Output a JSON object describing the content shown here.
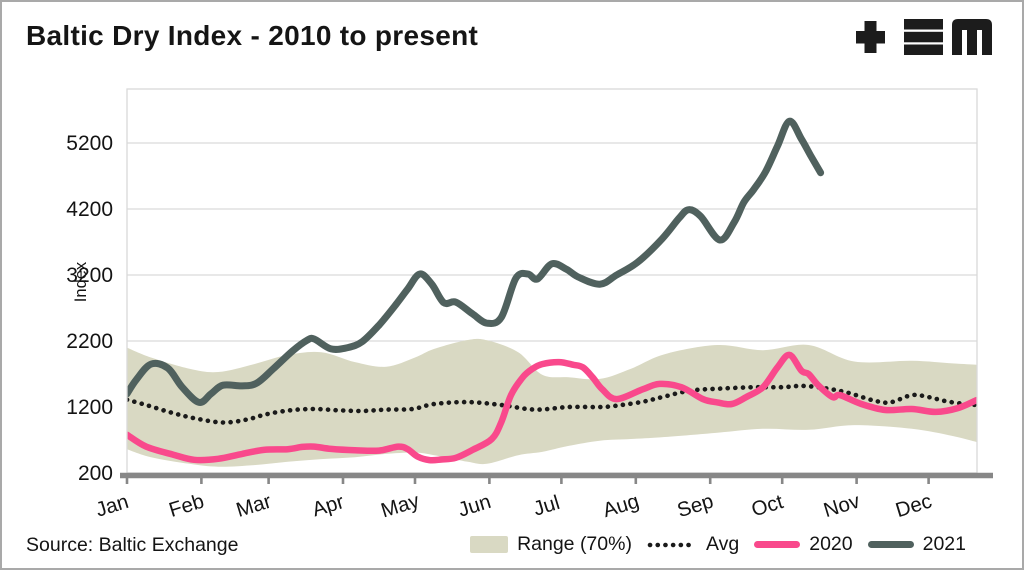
{
  "header": {
    "title": "Baltic Dry Index - 2010 to present",
    "logo": {
      "glyphs": [
        "plus-icon",
        "triple-bar-icon",
        "m-icon"
      ],
      "color": "#1c1c1c"
    }
  },
  "source_note": "Source: Baltic Exchange",
  "legend": {
    "range_label": "Range (70%)",
    "avg_label": "Avg",
    "y2020_label": "2020",
    "y2021_label": "2021"
  },
  "chart_data": {
    "type": "line",
    "title": "Baltic Dry Index - 2010 to present",
    "xlabel": "",
    "ylabel": "Index",
    "y_ticks": [
      200,
      1200,
      2200,
      3200,
      4200,
      5200
    ],
    "ylim": [
      200,
      6020
    ],
    "x_tick_labels": [
      "Jan",
      "Feb",
      "Mar",
      "Apr",
      "May",
      "Jun",
      "Jul",
      "Aug",
      "Sep",
      "Oct",
      "Nov",
      "Dec"
    ],
    "x_tick_days": [
      0,
      31,
      59,
      90,
      120,
      151,
      181,
      212,
      243,
      273,
      304,
      334
    ],
    "x_domain_days": [
      0,
      354
    ],
    "grid": "horizontal-only",
    "legend_position": "bottom-right",
    "colors": {
      "band": "#d9d9c3",
      "avg_dots": "#1a1a1a",
      "y2020": "#f9498c",
      "y2021": "#50615e",
      "axis": "#878787",
      "gridline": "#d9d9d9",
      "text": "#141414"
    },
    "series": [
      {
        "name": "Range (70%)",
        "type": "band",
        "color": "#d9d9c3",
        "points_day_lo_hi": [
          [
            0,
            560,
            2100
          ],
          [
            10,
            440,
            1950
          ],
          [
            26,
            340,
            1780
          ],
          [
            38,
            295,
            1730
          ],
          [
            53,
            320,
            1850
          ],
          [
            67,
            370,
            1990
          ],
          [
            81,
            410,
            2030
          ],
          [
            95,
            440,
            1880
          ],
          [
            108,
            490,
            1810
          ],
          [
            120,
            510,
            1950
          ],
          [
            128,
            470,
            2080
          ],
          [
            142,
            370,
            2215
          ],
          [
            150,
            340,
            2210
          ],
          [
            163,
            470,
            2030
          ],
          [
            173,
            520,
            1690
          ],
          [
            184,
            610,
            1650
          ],
          [
            197,
            690,
            1625
          ],
          [
            210,
            715,
            1780
          ],
          [
            224,
            745,
            2000
          ],
          [
            246,
            810,
            2140
          ],
          [
            265,
            870,
            2060
          ],
          [
            284,
            855,
            2140
          ],
          [
            303,
            925,
            1890
          ],
          [
            327,
            870,
            1900
          ],
          [
            344,
            760,
            1860
          ],
          [
            354,
            670,
            1840
          ]
        ]
      },
      {
        "name": "Avg",
        "type": "line",
        "style": "dotted",
        "color": "#1a1a1a",
        "points_day_value": [
          [
            0,
            1310
          ],
          [
            8,
            1230
          ],
          [
            18,
            1120
          ],
          [
            28,
            1030
          ],
          [
            40,
            965
          ],
          [
            50,
            1010
          ],
          [
            58,
            1090
          ],
          [
            68,
            1150
          ],
          [
            78,
            1170
          ],
          [
            88,
            1150
          ],
          [
            98,
            1140
          ],
          [
            108,
            1160
          ],
          [
            119,
            1170
          ],
          [
            128,
            1245
          ],
          [
            142,
            1275
          ],
          [
            156,
            1230
          ],
          [
            170,
            1160
          ],
          [
            184,
            1200
          ],
          [
            198,
            1200
          ],
          [
            206,
            1230
          ],
          [
            215,
            1280
          ],
          [
            223,
            1350
          ],
          [
            235,
            1450
          ],
          [
            248,
            1480
          ],
          [
            261,
            1500
          ],
          [
            273,
            1500
          ],
          [
            281,
            1520
          ],
          [
            290,
            1490
          ],
          [
            300,
            1420
          ],
          [
            311,
            1300
          ],
          [
            318,
            1270
          ],
          [
            327,
            1380
          ],
          [
            334,
            1350
          ],
          [
            341,
            1290
          ],
          [
            348,
            1250
          ],
          [
            354,
            1230
          ]
        ]
      },
      {
        "name": "2020",
        "type": "line",
        "style": "solid",
        "color": "#f9498c",
        "points_day_value": [
          [
            0,
            780
          ],
          [
            8,
            600
          ],
          [
            19,
            480
          ],
          [
            28,
            400
          ],
          [
            38,
            415
          ],
          [
            48,
            490
          ],
          [
            57,
            550
          ],
          [
            67,
            560
          ],
          [
            73,
            595
          ],
          [
            78,
            600
          ],
          [
            85,
            565
          ],
          [
            95,
            545
          ],
          [
            105,
            540
          ],
          [
            113,
            600
          ],
          [
            117,
            560
          ],
          [
            121,
            450
          ],
          [
            126,
            395
          ],
          [
            131,
            405
          ],
          [
            137,
            430
          ],
          [
            144,
            550
          ],
          [
            152,
            715
          ],
          [
            156,
            975
          ],
          [
            160,
            1380
          ],
          [
            165,
            1655
          ],
          [
            169,
            1780
          ],
          [
            173,
            1850
          ],
          [
            180,
            1880
          ],
          [
            186,
            1840
          ],
          [
            190,
            1800
          ],
          [
            194,
            1650
          ],
          [
            198,
            1470
          ],
          [
            204,
            1320
          ],
          [
            215,
            1470
          ],
          [
            222,
            1550
          ],
          [
            231,
            1500
          ],
          [
            240,
            1320
          ],
          [
            246,
            1270
          ],
          [
            252,
            1245
          ],
          [
            258,
            1350
          ],
          [
            265,
            1500
          ],
          [
            271,
            1800
          ],
          [
            276,
            1990
          ],
          [
            281,
            1750
          ],
          [
            284,
            1700
          ],
          [
            288,
            1530
          ],
          [
            294,
            1350
          ],
          [
            297,
            1380
          ],
          [
            306,
            1245
          ],
          [
            316,
            1155
          ],
          [
            327,
            1170
          ],
          [
            337,
            1125
          ],
          [
            346,
            1180
          ],
          [
            354,
            1305
          ]
        ]
      },
      {
        "name": "2021",
        "type": "line",
        "style": "solid",
        "color": "#50615e",
        "points_day_value": [
          [
            0,
            1400
          ],
          [
            4,
            1620
          ],
          [
            10,
            1850
          ],
          [
            17,
            1790
          ],
          [
            23,
            1500
          ],
          [
            30,
            1270
          ],
          [
            35,
            1400
          ],
          [
            40,
            1530
          ],
          [
            48,
            1520
          ],
          [
            54,
            1560
          ],
          [
            61,
            1780
          ],
          [
            69,
            2050
          ],
          [
            75,
            2210
          ],
          [
            78,
            2230
          ],
          [
            85,
            2080
          ],
          [
            92,
            2100
          ],
          [
            98,
            2190
          ],
          [
            105,
            2440
          ],
          [
            112,
            2750
          ],
          [
            117,
            2990
          ],
          [
            122,
            3215
          ],
          [
            127,
            3060
          ],
          [
            132,
            2780
          ],
          [
            137,
            2790
          ],
          [
            144,
            2610
          ],
          [
            150,
            2470
          ],
          [
            156,
            2560
          ],
          [
            162,
            3150
          ],
          [
            167,
            3215
          ],
          [
            171,
            3140
          ],
          [
            177,
            3370
          ],
          [
            183,
            3290
          ],
          [
            188,
            3170
          ],
          [
            197,
            3060
          ],
          [
            204,
            3200
          ],
          [
            213,
            3400
          ],
          [
            223,
            3750
          ],
          [
            230,
            4060
          ],
          [
            234,
            4190
          ],
          [
            239,
            4090
          ],
          [
            247,
            3730
          ],
          [
            253,
            4000
          ],
          [
            257,
            4300
          ],
          [
            261,
            4490
          ],
          [
            266,
            4760
          ],
          [
            271,
            5150
          ],
          [
            276,
            5530
          ],
          [
            281,
            5260
          ],
          [
            285,
            5000
          ],
          [
            289,
            4750
          ]
        ]
      }
    ]
  }
}
